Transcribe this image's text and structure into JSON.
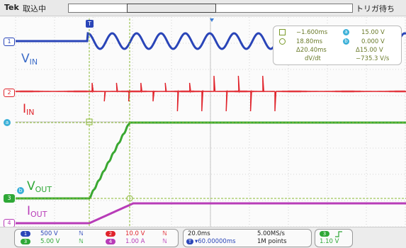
{
  "header": {
    "brand": "Tek",
    "acq_status": "取込中",
    "trigger_status": "トリガ待ち"
  },
  "signals": {
    "vin": {
      "main": "V",
      "sub": "IN",
      "color": "#2a45b8"
    },
    "iin": {
      "main": "I",
      "sub": "IN",
      "color": "#e0232b"
    },
    "vout": {
      "main": "V",
      "sub": "OUT",
      "color": "#2ea836"
    },
    "iout": {
      "main": "I",
      "sub": "OUT",
      "color": "#b83cb8"
    }
  },
  "channel_markers": {
    "ch1": "1",
    "ch2": "2",
    "ch3": "3",
    "ch4": "4",
    "trigger": "T",
    "cursor_a": "a",
    "cursor_b": "b"
  },
  "measurements": {
    "a_time": "−1.600ms",
    "a_value": "15.00 V",
    "b_time": "18.80ms",
    "b_value": "0.000 V",
    "delta_time": "Δ20.40ms",
    "delta_value": "Δ15.00 V",
    "slope_label": "dV/dt",
    "slope_value": "−735.3 V/s"
  },
  "bottom": {
    "ch1_scale": "500 V",
    "ch2_scale": "10.0 V",
    "ch3_scale": "5.00 V",
    "ch4_scale": "1.00 A",
    "timebase": "20.0ms",
    "sample_rate": "5.00MS/s",
    "position": "▾60.00000ms",
    "record_length": "1M points",
    "trig_channel": "3",
    "trig_level": "1.10 V",
    "bw_symbol": "ℕ"
  },
  "colors": {
    "ch1": "#2a45b8",
    "ch2": "#e0232b",
    "ch3": "#2ea836",
    "ch4": "#b83cb8",
    "cursor": "#8ab832"
  }
}
